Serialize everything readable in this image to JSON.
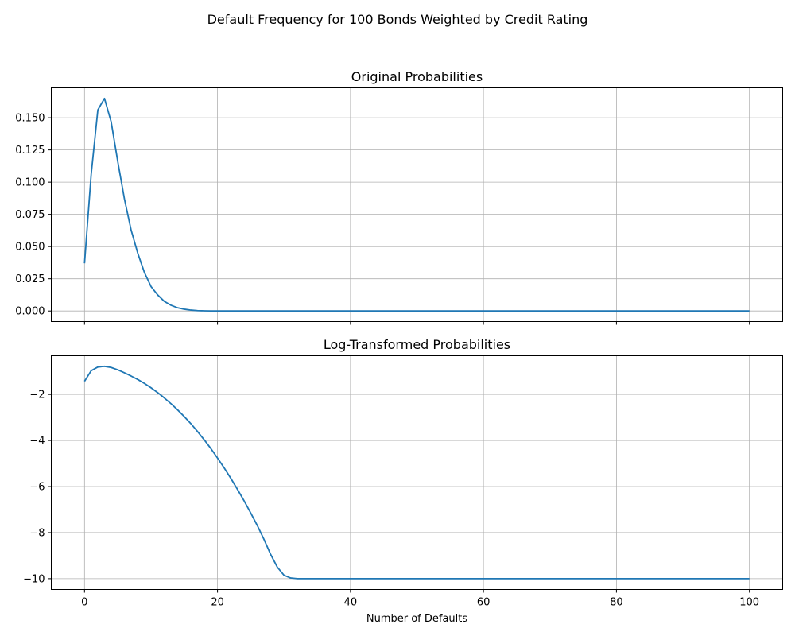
{
  "figure": {
    "suptitle": "Default Frequency for 100 Bonds Weighted by Credit Rating",
    "xlabel": "Number of Defaults"
  },
  "colors": {
    "line": "#1f77b4",
    "grid": "#b0b0b0",
    "axes": "#000000"
  },
  "chart_data": [
    {
      "type": "line",
      "title": "Original Probabilities",
      "xlabel": "",
      "ylabel": "",
      "xlim": [
        -5,
        105
      ],
      "ylim": [
        -0.0082,
        0.1732
      ],
      "grid": true,
      "x_ticks": [
        0,
        20,
        40,
        60,
        80,
        100
      ],
      "x_tick_labels_shown": false,
      "y_ticks": [
        0.0,
        0.025,
        0.05,
        0.075,
        0.1,
        0.125,
        0.15
      ],
      "y_tick_labels": [
        "0.000",
        "0.025",
        "0.050",
        "0.075",
        "0.100",
        "0.125",
        "0.150"
      ],
      "series": [
        {
          "x": [
            0,
            1,
            2,
            3,
            4,
            5,
            6,
            7,
            8,
            9,
            10,
            11,
            12,
            13,
            14,
            15,
            16,
            17,
            18,
            19,
            20,
            21,
            22,
            23,
            24,
            25,
            26,
            27,
            28,
            29,
            30,
            31,
            32,
            33,
            34,
            35,
            36,
            37,
            38,
            39,
            40,
            41,
            42,
            43,
            44,
            45,
            46,
            47,
            48,
            49,
            50,
            51,
            52,
            53,
            54,
            55,
            56,
            57,
            58,
            59,
            60,
            61,
            62,
            63,
            64,
            65,
            66,
            67,
            68,
            69,
            70,
            71,
            72,
            73,
            74,
            75,
            76,
            77,
            78,
            79,
            80,
            81,
            82,
            83,
            84,
            85,
            86,
            87,
            88,
            89,
            90,
            91,
            92,
            93,
            94,
            95,
            96,
            97,
            98,
            99,
            100
          ],
          "values": [
            0.037,
            0.106,
            0.156,
            0.165,
            0.147,
            0.116,
            0.087,
            0.063,
            0.045,
            0.03,
            0.019,
            0.0125,
            0.0075,
            0.0045,
            0.0025,
            0.0014,
            0.0007,
            0.0003,
            0.00015,
            7e-05,
            3e-05,
            1e-05,
            0,
            0,
            0,
            0,
            0,
            0,
            0,
            0,
            0,
            0,
            0,
            0,
            0,
            0,
            0,
            0,
            0,
            0,
            0,
            0,
            0,
            0,
            0,
            0,
            0,
            0,
            0,
            0,
            0,
            0,
            0,
            0,
            0,
            0,
            0,
            0,
            0,
            0,
            0,
            0,
            0,
            0,
            0,
            0,
            0,
            0,
            0,
            0,
            0,
            0,
            0,
            0,
            0,
            0,
            0,
            0,
            0,
            0,
            0,
            0,
            0,
            0,
            0,
            0,
            0,
            0,
            0,
            0,
            0,
            0,
            0,
            0,
            0,
            0,
            0,
            0,
            0,
            0,
            0
          ]
        }
      ]
    },
    {
      "type": "line",
      "title": "Log-Transformed Probabilities",
      "xlabel": "Number of Defaults",
      "ylabel": "",
      "xlim": [
        -5,
        105
      ],
      "ylim": [
        -10.47,
        -0.32
      ],
      "grid": true,
      "x_ticks": [
        0,
        20,
        40,
        60,
        80,
        100
      ],
      "x_tick_labels": [
        "0",
        "20",
        "40",
        "60",
        "80",
        "100"
      ],
      "y_ticks": [
        -10,
        -8,
        -6,
        -4,
        -2
      ],
      "y_tick_labels": [
        "−10",
        "−8",
        "−6",
        "−4",
        "−2"
      ],
      "series": [
        {
          "x": [
            0,
            1,
            2,
            3,
            4,
            5,
            6,
            7,
            8,
            9,
            10,
            11,
            12,
            13,
            14,
            15,
            16,
            17,
            18,
            19,
            20,
            21,
            22,
            23,
            24,
            25,
            26,
            27,
            28,
            29,
            30,
            31,
            32,
            33,
            34,
            35,
            36,
            37,
            38,
            39,
            40,
            41,
            42,
            43,
            44,
            45,
            46,
            47,
            48,
            49,
            50,
            51,
            52,
            53,
            54,
            55,
            56,
            57,
            58,
            59,
            60,
            61,
            62,
            63,
            64,
            65,
            66,
            67,
            68,
            69,
            70,
            71,
            72,
            73,
            74,
            75,
            76,
            77,
            78,
            79,
            80,
            81,
            82,
            83,
            84,
            85,
            86,
            87,
            88,
            89,
            90,
            91,
            92,
            93,
            94,
            95,
            96,
            97,
            98,
            99,
            100
          ],
          "values": [
            -1.43,
            -0.97,
            -0.81,
            -0.78,
            -0.83,
            -0.93,
            -1.06,
            -1.2,
            -1.35,
            -1.52,
            -1.71,
            -1.92,
            -2.15,
            -2.4,
            -2.67,
            -2.96,
            -3.27,
            -3.61,
            -3.97,
            -4.35,
            -4.76,
            -5.19,
            -5.64,
            -6.12,
            -6.62,
            -7.15,
            -7.7,
            -8.3,
            -8.95,
            -9.5,
            -9.85,
            -9.97,
            -10,
            -10,
            -10,
            -10,
            -10,
            -10,
            -10,
            -10,
            -10,
            -10,
            -10,
            -10,
            -10,
            -10,
            -10,
            -10,
            -10,
            -10,
            -10,
            -10,
            -10,
            -10,
            -10,
            -10,
            -10,
            -10,
            -10,
            -10,
            -10,
            -10,
            -10,
            -10,
            -10,
            -10,
            -10,
            -10,
            -10,
            -10,
            -10,
            -10,
            -10,
            -10,
            -10,
            -10,
            -10,
            -10,
            -10,
            -10,
            -10,
            -10,
            -10,
            -10,
            -10,
            -10,
            -10,
            -10,
            -10,
            -10,
            -10,
            -10,
            -10,
            -10,
            -10,
            -10,
            -10,
            -10,
            -10,
            -10,
            -10
          ]
        }
      ]
    }
  ]
}
